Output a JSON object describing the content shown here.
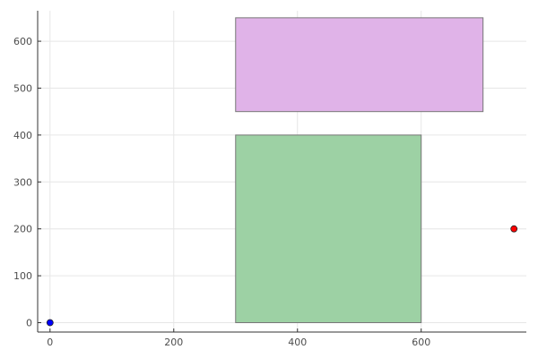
{
  "chart_data": {
    "type": "scatter",
    "title": "",
    "xlabel": "",
    "ylabel": "",
    "xlim": [
      -20,
      770
    ],
    "ylim": [
      -20,
      665
    ],
    "xticks": [
      0,
      200,
      400,
      600
    ],
    "yticks": [
      0,
      100,
      200,
      300,
      400,
      500,
      600
    ],
    "grid": true,
    "legend": "none",
    "rectangles": [
      {
        "x0": 300,
        "x1": 600,
        "y0": 0,
        "y1": 400,
        "fill": "#9dd1a4",
        "stroke": "#777777"
      },
      {
        "x0": 300,
        "x1": 700,
        "y0": 450,
        "y1": 650,
        "fill": "#e0b3e8",
        "stroke": "#777777"
      }
    ],
    "points": [
      {
        "x": 0,
        "y": 0,
        "color": "#0000ff"
      },
      {
        "x": 750,
        "y": 200,
        "color": "#ff0000"
      }
    ]
  }
}
